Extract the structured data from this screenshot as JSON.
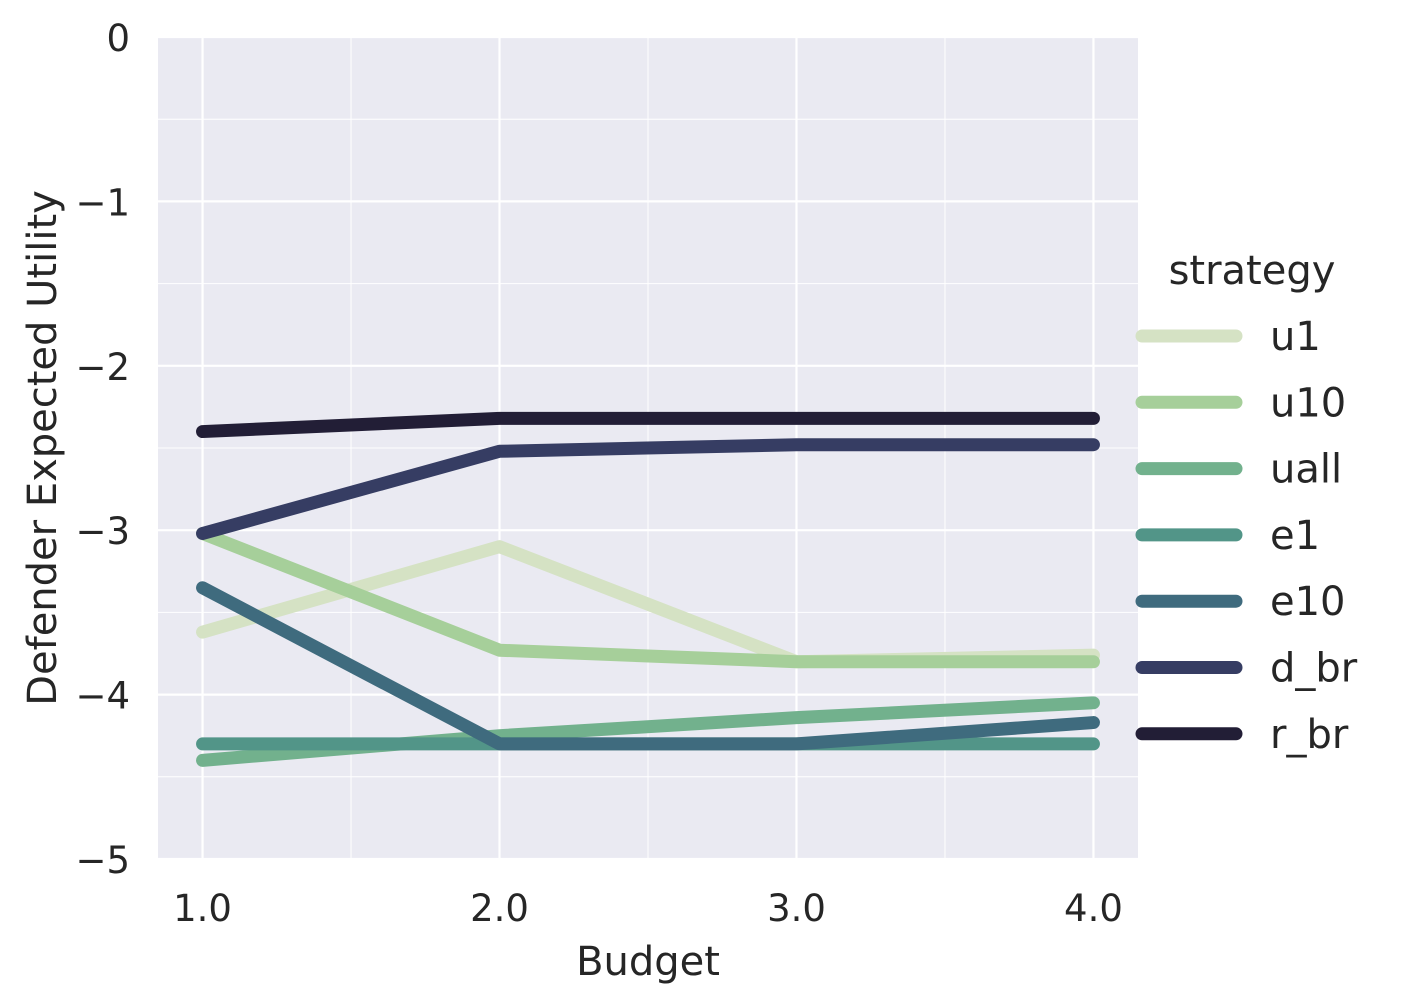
{
  "chart_data": {
    "type": "line",
    "title": "",
    "xlabel": "Budget",
    "ylabel": "Defender Expected Utility",
    "x": [
      1.0,
      2.0,
      3.0,
      4.0
    ],
    "x_tick_labels": [
      "1.0",
      "2.0",
      "3.0",
      "4.0"
    ],
    "xlim": [
      0.85,
      4.15
    ],
    "ylim": [
      -5,
      0
    ],
    "y_ticks": [
      0,
      -1,
      -2,
      -3,
      -4,
      -5
    ],
    "y_tick_labels": [
      "0",
      "−1",
      "−2",
      "−3",
      "−4",
      "−5"
    ],
    "grid": true,
    "legend_title": "strategy",
    "legend_position": "right",
    "series": [
      {
        "name": "u1",
        "color": "#d5e2c4",
        "values": [
          -3.62,
          -3.1,
          -3.8,
          -3.76
        ]
      },
      {
        "name": "u10",
        "color": "#a6cf9a",
        "values": [
          -3.02,
          -3.73,
          -3.8,
          -3.8
        ]
      },
      {
        "name": "uall",
        "color": "#72b18d",
        "values": [
          -4.4,
          -4.25,
          -4.14,
          -4.05
        ]
      },
      {
        "name": "e1",
        "color": "#529588",
        "values": [
          -4.3,
          -4.3,
          -4.3,
          -4.3
        ]
      },
      {
        "name": "e10",
        "color": "#3f6b7e",
        "values": [
          -3.35,
          -4.3,
          -4.3,
          -4.17
        ]
      },
      {
        "name": "d_br",
        "color": "#363d63",
        "values": [
          -3.02,
          -2.52,
          -2.48,
          -2.48
        ]
      },
      {
        "name": "r_br",
        "color": "#221e36",
        "values": [
          -2.4,
          -2.32,
          -2.32,
          -2.32
        ]
      }
    ]
  }
}
